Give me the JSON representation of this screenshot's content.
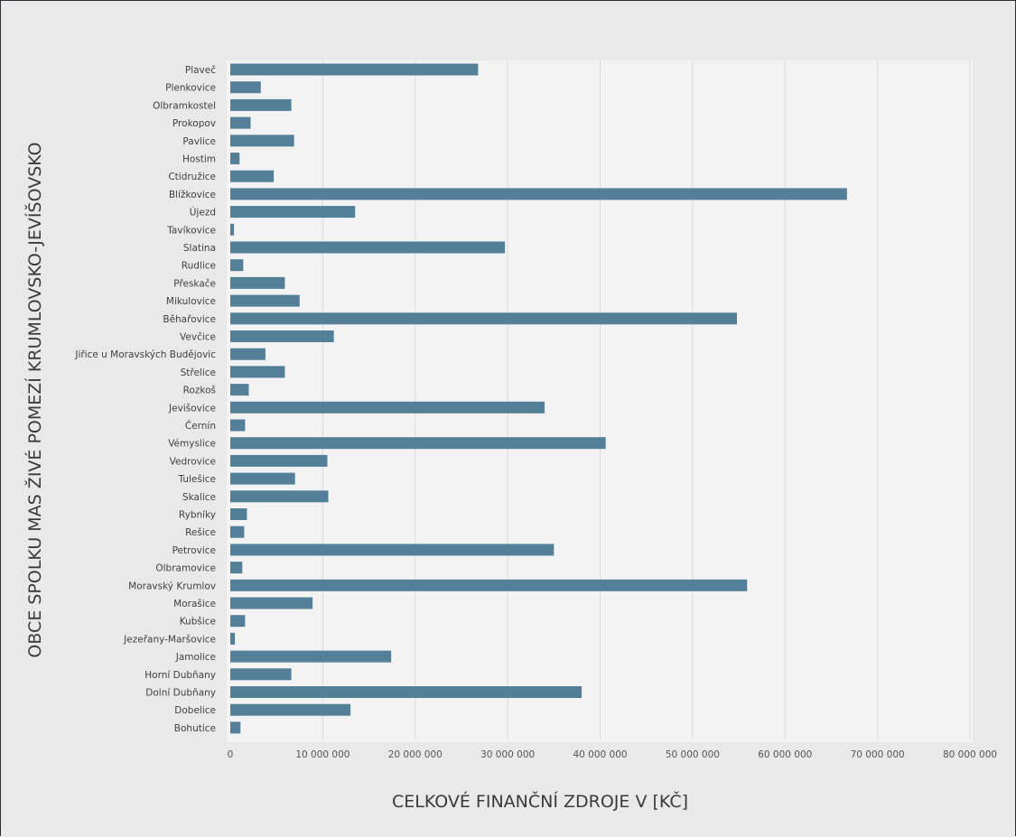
{
  "chart_data": {
    "type": "bar",
    "orientation": "horizontal",
    "title": "",
    "xlabel": "CELKOVÉ FINANČNÍ ZDROJE V [KČ]",
    "ylabel": "OBCE SPOLKU MAS ŽIVÉ POMEZÍ KRUMLOVSKO-JEVÍŠOVSKO",
    "xlim": [
      0,
      80000000
    ],
    "xticks": [
      0,
      10000000,
      20000000,
      30000000,
      40000000,
      50000000,
      60000000,
      70000000,
      80000000
    ],
    "xtick_labels": [
      "0",
      "10 000 000",
      "20 000 000",
      "30 000 000",
      "40 000 000",
      "50 000 000",
      "60 000 000",
      "70 000 000",
      "80 000 000"
    ],
    "grid": "vertical",
    "legend": "none",
    "bar_color": "#537f98",
    "categories": [
      "Plaveč",
      "Plenkovice",
      "Olbramkostel",
      "Prokopov",
      "Pavlice",
      "Hostim",
      "Ctidružice",
      "Blížkovice",
      "Újezd",
      "Tavíkovice",
      "Slatina",
      "Rudlice",
      "Přeskače",
      "Mikulovice",
      "Běhařovice",
      "Vevčice",
      "Jiřice u Moravských Budějovic",
      "Střelice",
      "Rozkoš",
      "Jevišovice",
      "Černín",
      "Vémyslice",
      "Vedrovice",
      "Tulešice",
      "Skalice",
      "Rybníky",
      "Rešice",
      "Petrovice",
      "Olbramovice",
      "Moravský Krumlov",
      "Morašice",
      "Kubšice",
      "Jezeřany-Maršovice",
      "Jamolice",
      "Horní Dubňany",
      "Dolní Dubňany",
      "Dobelice",
      "Bohutice"
    ],
    "values": [
      26800000,
      3300000,
      6600000,
      2200000,
      6900000,
      1000000,
      4700000,
      66700000,
      13500000,
      400000,
      29700000,
      1400000,
      5900000,
      7500000,
      54800000,
      11200000,
      3800000,
      5900000,
      2000000,
      34000000,
      1600000,
      40600000,
      10500000,
      7000000,
      10600000,
      1800000,
      1500000,
      35000000,
      1300000,
      55900000,
      8900000,
      1600000,
      500000,
      17400000,
      6600000,
      38000000,
      13000000,
      1100000
    ]
  }
}
